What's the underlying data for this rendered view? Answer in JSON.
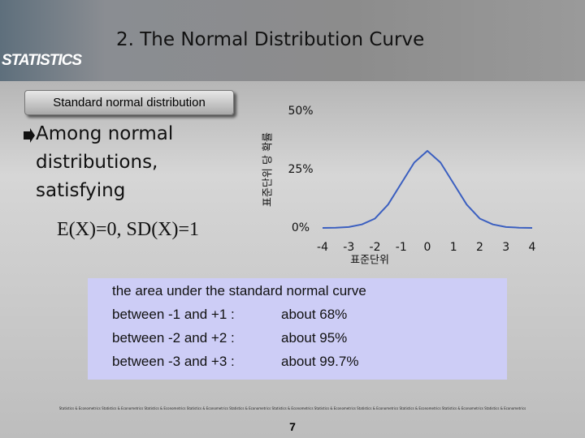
{
  "header": {
    "logo": "STATISTICS",
    "title": "2. The Normal Distribution Curve"
  },
  "tab_label": "Standard normal distribution",
  "bullet_lines": [
    "Among normal",
    "distributions,",
    "satisfying"
  ],
  "formula": "E(X)=0, SD(X)=1",
  "chart": {
    "chart_data": {
      "type": "line",
      "ylabel": "표준단위 당 확률",
      "xlabel": "표준단위",
      "x": [
        -4,
        -3.5,
        -3,
        -2.5,
        -2,
        -1.5,
        -1,
        -0.5,
        0,
        0.5,
        1,
        1.5,
        2,
        2.5,
        3,
        3.5,
        4
      ],
      "series": [
        {
          "color": "#3b5fc0",
          "values": [
            0,
            0.1,
            0.4,
            1.5,
            4,
            10,
            19,
            28,
            33,
            28,
            19,
            10,
            4,
            1.5,
            0.4,
            0.1,
            0
          ]
        }
      ],
      "xlim": [
        -4,
        4
      ],
      "xticks": [
        -4,
        -3,
        -2,
        -1,
        0,
        1,
        2,
        3,
        4
      ],
      "ylim": [
        0,
        50
      ],
      "yticks": [
        {
          "value": 0,
          "label": "0%"
        },
        {
          "value": 25,
          "label": "25%"
        },
        {
          "value": 50,
          "label": "50%"
        }
      ],
      "grid": false
    }
  },
  "box": {
    "heading": "the area under the standard normal curve",
    "rows": [
      [
        "between -1 and +1 :",
        "about 68%"
      ],
      [
        "between -2 and +2 :",
        "about 95%"
      ],
      [
        "between -3 and +3 :",
        "about 99.7%"
      ]
    ]
  },
  "footer_strip": "Statistics & Econometrics Statistics & Econometrics Statistics & Econometrics Statistics & Econometrics Statistics & Econometrics Statistics & Econometrics Statistics & Econometrics Statistics & Econometrics Statistics & Econometrics Statistics & Econometrics Statistics & Econometrics",
  "page_number": "7"
}
